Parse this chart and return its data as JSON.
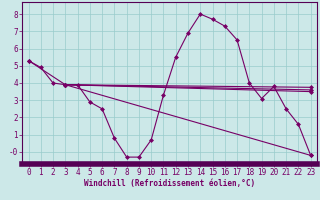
{
  "xlabel": "Windchill (Refroidissement éolien,°C)",
  "xlim": [
    -0.5,
    23.5
  ],
  "ylim": [
    -0.7,
    8.7
  ],
  "xticks": [
    0,
    1,
    2,
    3,
    4,
    5,
    6,
    7,
    8,
    9,
    10,
    11,
    12,
    13,
    14,
    15,
    16,
    17,
    18,
    19,
    20,
    21,
    22,
    23
  ],
  "yticks": [
    0,
    1,
    2,
    3,
    4,
    5,
    6,
    7,
    8
  ],
  "ytick_labels": [
    "-0",
    "1",
    "2",
    "3",
    "4",
    "5",
    "6",
    "7",
    "8"
  ],
  "background_color": "#cce8e8",
  "grid_color": "#99cccc",
  "line_color": "#770066",
  "axis_bar_color": "#550055",
  "lines": [
    {
      "x": [
        0,
        1,
        2,
        3,
        4,
        5,
        6,
        7,
        8,
        9,
        10,
        11,
        12,
        13,
        14,
        15,
        16,
        17,
        18,
        19,
        20,
        21,
        22,
        23
      ],
      "y": [
        5.3,
        4.9,
        4.0,
        3.9,
        3.9,
        2.9,
        2.5,
        0.8,
        -0.3,
        -0.3,
        0.7,
        3.3,
        5.5,
        6.9,
        8.0,
        7.7,
        7.3,
        6.5,
        4.0,
        3.1,
        3.8,
        2.5,
        1.6,
        -0.2
      ]
    },
    {
      "x": [
        0,
        3,
        23
      ],
      "y": [
        5.3,
        3.9,
        -0.2
      ]
    },
    {
      "x": [
        3,
        23
      ],
      "y": [
        3.9,
        3.75
      ]
    },
    {
      "x": [
        3,
        23
      ],
      "y": [
        3.9,
        3.6
      ]
    },
    {
      "x": [
        3,
        23
      ],
      "y": [
        3.9,
        3.5
      ]
    }
  ],
  "marker": "D",
  "marker_size": 2.0,
  "line_width": 0.8,
  "xlabel_fontsize": 5.5,
  "tick_fontsize": 5.5
}
